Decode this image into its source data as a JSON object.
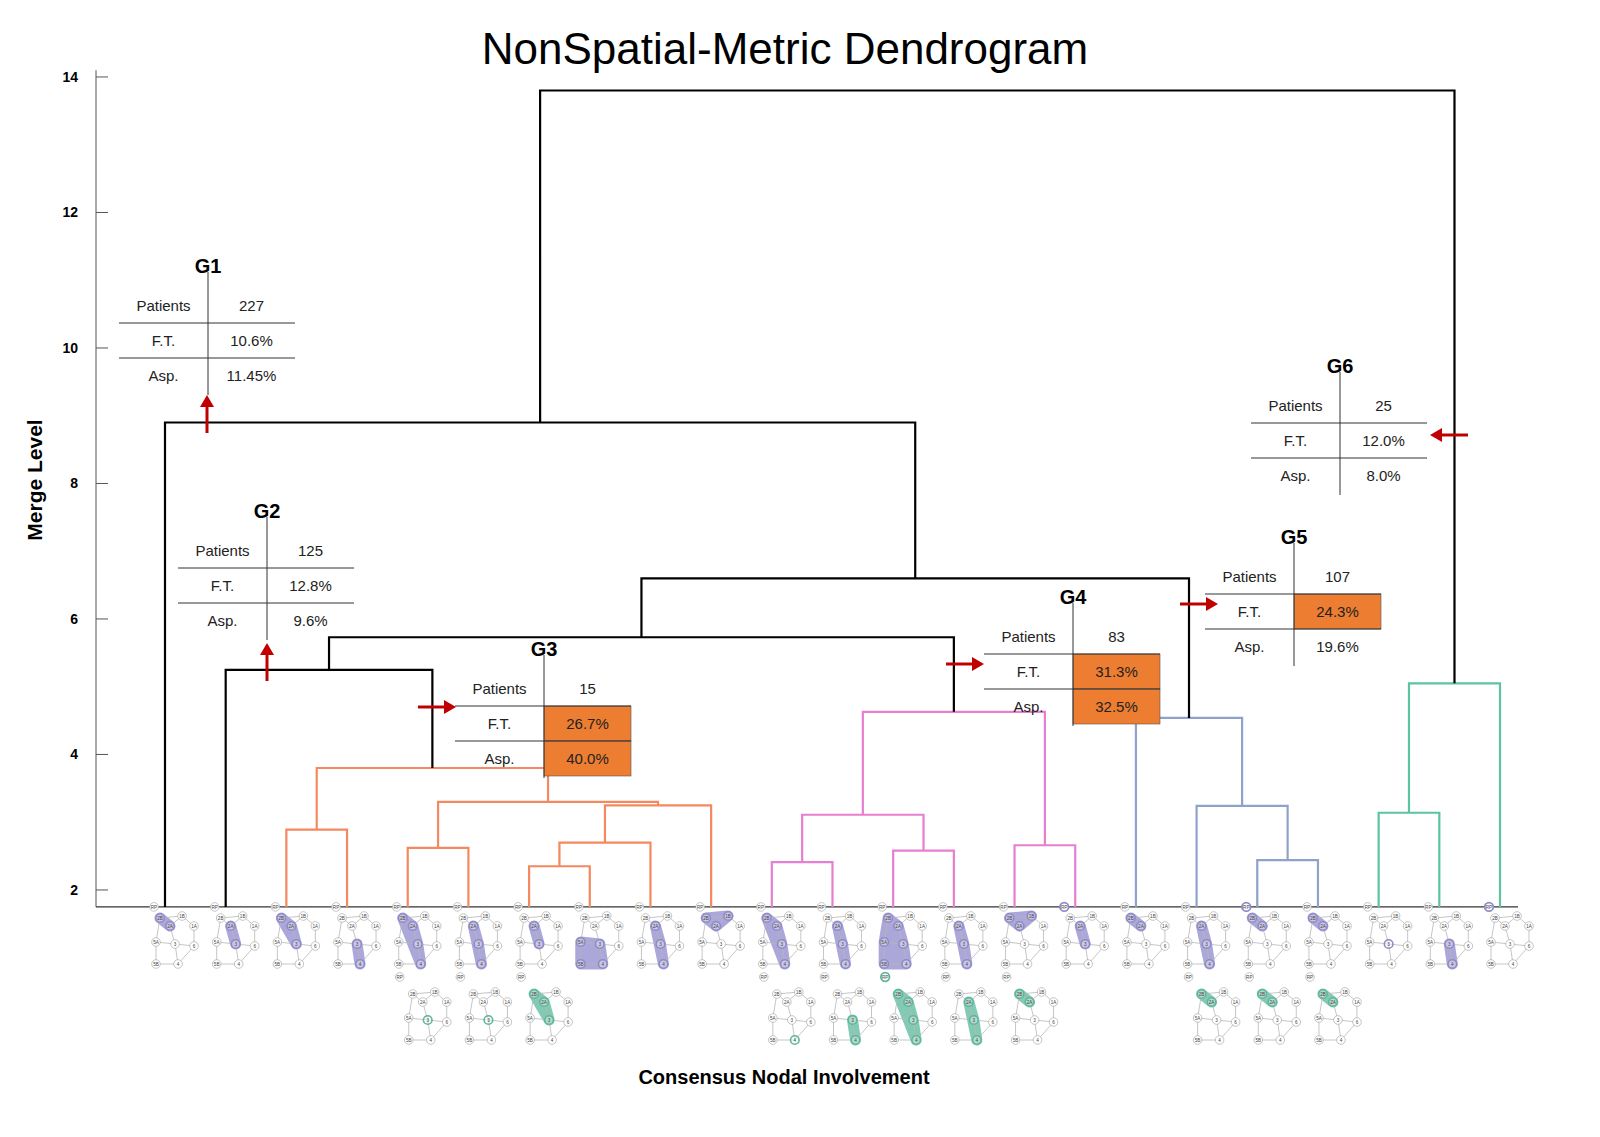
{
  "chart_data": {
    "type": "dendrogram",
    "title": "NonSpatial-Metric Dendrogram",
    "y_label": "Merge Level",
    "x_label": "Consensus Nodal Involvement",
    "ylim": [
      1.75,
      14.1
    ],
    "yticks": [
      2,
      4,
      6,
      8,
      10,
      12,
      14
    ],
    "tick_labels": "y",
    "node_labels": [
      "2B",
      "1B",
      "2A",
      "1A",
      "5A",
      "3",
      "6",
      "5B",
      "4",
      "RP"
    ],
    "leaves": [
      {
        "involved": [
          "2B",
          "2A"
        ],
        "secondary": []
      },
      {
        "involved": [
          "2A",
          "3"
        ],
        "secondary": []
      },
      {
        "involved": [
          "2B",
          "2A",
          "3"
        ],
        "secondary": []
      },
      {
        "involved": [
          "3",
          "4"
        ],
        "secondary": []
      },
      {
        "involved": [
          "2B",
          "2A",
          "3",
          "4"
        ],
        "secondary": [
          "3"
        ]
      },
      {
        "involved": [
          "2A",
          "3",
          "4"
        ],
        "secondary": [
          "3"
        ]
      },
      {
        "involved": [
          "2A",
          "3"
        ],
        "secondary": [
          "2B",
          "2A",
          "3"
        ]
      },
      {
        "involved": [
          "5A",
          "3",
          "4",
          "5B"
        ],
        "secondary": []
      },
      {
        "involved": [
          "2A",
          "3",
          "4"
        ],
        "secondary": []
      },
      {
        "involved": [
          "2B",
          "2A",
          "1B"
        ],
        "secondary": []
      },
      {
        "involved": [
          "2B",
          "2A",
          "3",
          "4"
        ],
        "secondary": [
          "4"
        ]
      },
      {
        "involved": [
          "2A",
          "3",
          "4"
        ],
        "secondary": [
          "3",
          "4"
        ]
      },
      {
        "involved": [
          "2B",
          "2A",
          "3",
          "4",
          "5B",
          "5A"
        ],
        "secondary": [
          "2B",
          "2A",
          "3",
          "4",
          "RP"
        ]
      },
      {
        "involved": [
          "2A",
          "3",
          "4"
        ],
        "secondary": [
          "2A",
          "3",
          "4"
        ]
      },
      {
        "involved": [
          "2B",
          "2A",
          "1B"
        ],
        "secondary": [
          "2B",
          "2A"
        ]
      },
      {
        "involved": [
          "2A",
          "3",
          "RP"
        ],
        "secondary": []
      },
      {
        "involved": [
          "2B",
          "2A"
        ],
        "secondary": []
      },
      {
        "involved": [
          "2A",
          "3",
          "4"
        ],
        "secondary": [
          "2B",
          "2A"
        ]
      },
      {
        "involved": [
          "2A",
          "2B",
          "RP"
        ],
        "secondary": [
          "2B",
          "2A"
        ]
      },
      {
        "involved": [
          "2B",
          "2A"
        ],
        "secondary": [
          "2B",
          "2A"
        ]
      },
      {
        "involved": [
          "3"
        ],
        "secondary": []
      },
      {
        "involved": [
          "3",
          "4"
        ],
        "secondary": []
      },
      {
        "involved": [
          "RP"
        ],
        "secondary": []
      }
    ],
    "merges": [
      {
        "children": [
          2,
          3
        ],
        "height": 2.89,
        "color": "#f4895f"
      },
      {
        "children": [
          4,
          5
        ],
        "height": 2.62,
        "color": "#f4895f"
      },
      {
        "children": [
          6,
          7
        ],
        "height": 2.35,
        "color": "#f4895f"
      },
      {
        "children": [
          25,
          8
        ],
        "height": 2.7,
        "color": "#f4895f"
      },
      {
        "children": [
          26,
          9
        ],
        "height": 3.25,
        "color": "#f4895f"
      },
      {
        "children": [
          24,
          27
        ],
        "height": 3.3,
        "color": "#f4895f"
      },
      {
        "children": [
          23,
          28
        ],
        "height": 3.8,
        "color": "#f4895f"
      },
      {
        "children": [
          1,
          29
        ],
        "height": 5.25,
        "color": "#000000"
      },
      {
        "children": [
          10,
          11
        ],
        "height": 2.41,
        "color": "#e77fd0"
      },
      {
        "children": [
          12,
          13
        ],
        "height": 2.58,
        "color": "#e77fd0"
      },
      {
        "children": [
          31,
          32
        ],
        "height": 3.11,
        "color": "#e77fd0"
      },
      {
        "children": [
          14,
          15
        ],
        "height": 2.66,
        "color": "#e77fd0"
      },
      {
        "children": [
          33,
          34
        ],
        "height": 4.63,
        "color": "#e77fd0"
      },
      {
        "children": [
          30,
          35
        ],
        "height": 5.73,
        "color": "#000000"
      },
      {
        "children": [
          18,
          19
        ],
        "height": 2.44,
        "color": "#8fa2cc"
      },
      {
        "children": [
          17,
          37
        ],
        "height": 3.24,
        "color": "#8fa2cc"
      },
      {
        "children": [
          16,
          38
        ],
        "height": 4.54,
        "color": "#8fa2cc"
      },
      {
        "children": [
          36,
          39
        ],
        "height": 6.6,
        "color": "#000000"
      },
      {
        "children": [
          0,
          40
        ],
        "height": 8.9,
        "color": "#000000"
      },
      {
        "children": [
          20,
          21
        ],
        "height": 3.14,
        "color": "#5bc4a0"
      },
      {
        "children": [
          42,
          22
        ],
        "height": 5.05,
        "color": "#5bc4a0"
      },
      {
        "children": [
          41,
          43
        ],
        "height": 13.8,
        "color": "#000000"
      }
    ],
    "table_rows": [
      "Patients",
      "F.T.",
      "Asp."
    ],
    "groups": [
      {
        "name": "G1",
        "values": [
          227,
          10.6,
          11.45
        ],
        "value_labels": [
          "227",
          "10.6%",
          "11.45%"
        ],
        "colors": [
          "#ffffff",
          "#ffffff",
          "#ffffff"
        ]
      },
      {
        "name": "G2",
        "values": [
          125,
          12.8,
          9.6
        ],
        "value_labels": [
          "125",
          "12.8%",
          "9.6%"
        ],
        "colors": [
          "#ffffff",
          "#ffffff",
          "#ffffff"
        ]
      },
      {
        "name": "G3",
        "values": [
          15,
          26.7,
          40.0
        ],
        "value_labels": [
          "15",
          "26.7%",
          "40.0%"
        ],
        "colors": [
          "#ffffff",
          "#ed7d31",
          "#ed7d31"
        ]
      },
      {
        "name": "G4",
        "values": [
          83,
          31.3,
          32.5
        ],
        "value_labels": [
          "83",
          "31.3%",
          "32.5%"
        ],
        "colors": [
          "#ffffff",
          "#ed7d31",
          "#ed7d31"
        ]
      },
      {
        "name": "G5",
        "values": [
          107,
          24.3,
          19.6
        ],
        "value_labels": [
          "107",
          "24.3%",
          "19.6%"
        ],
        "colors": [
          "#ffffff",
          "#ed7d31",
          "#ffffff"
        ]
      },
      {
        "name": "G6",
        "values": [
          25,
          12.0,
          8.0
        ],
        "value_labels": [
          "25",
          "12.0%",
          "8.0%"
        ],
        "colors": [
          "#ffffff",
          "#ffffff",
          "#ffffff"
        ]
      }
    ]
  }
}
